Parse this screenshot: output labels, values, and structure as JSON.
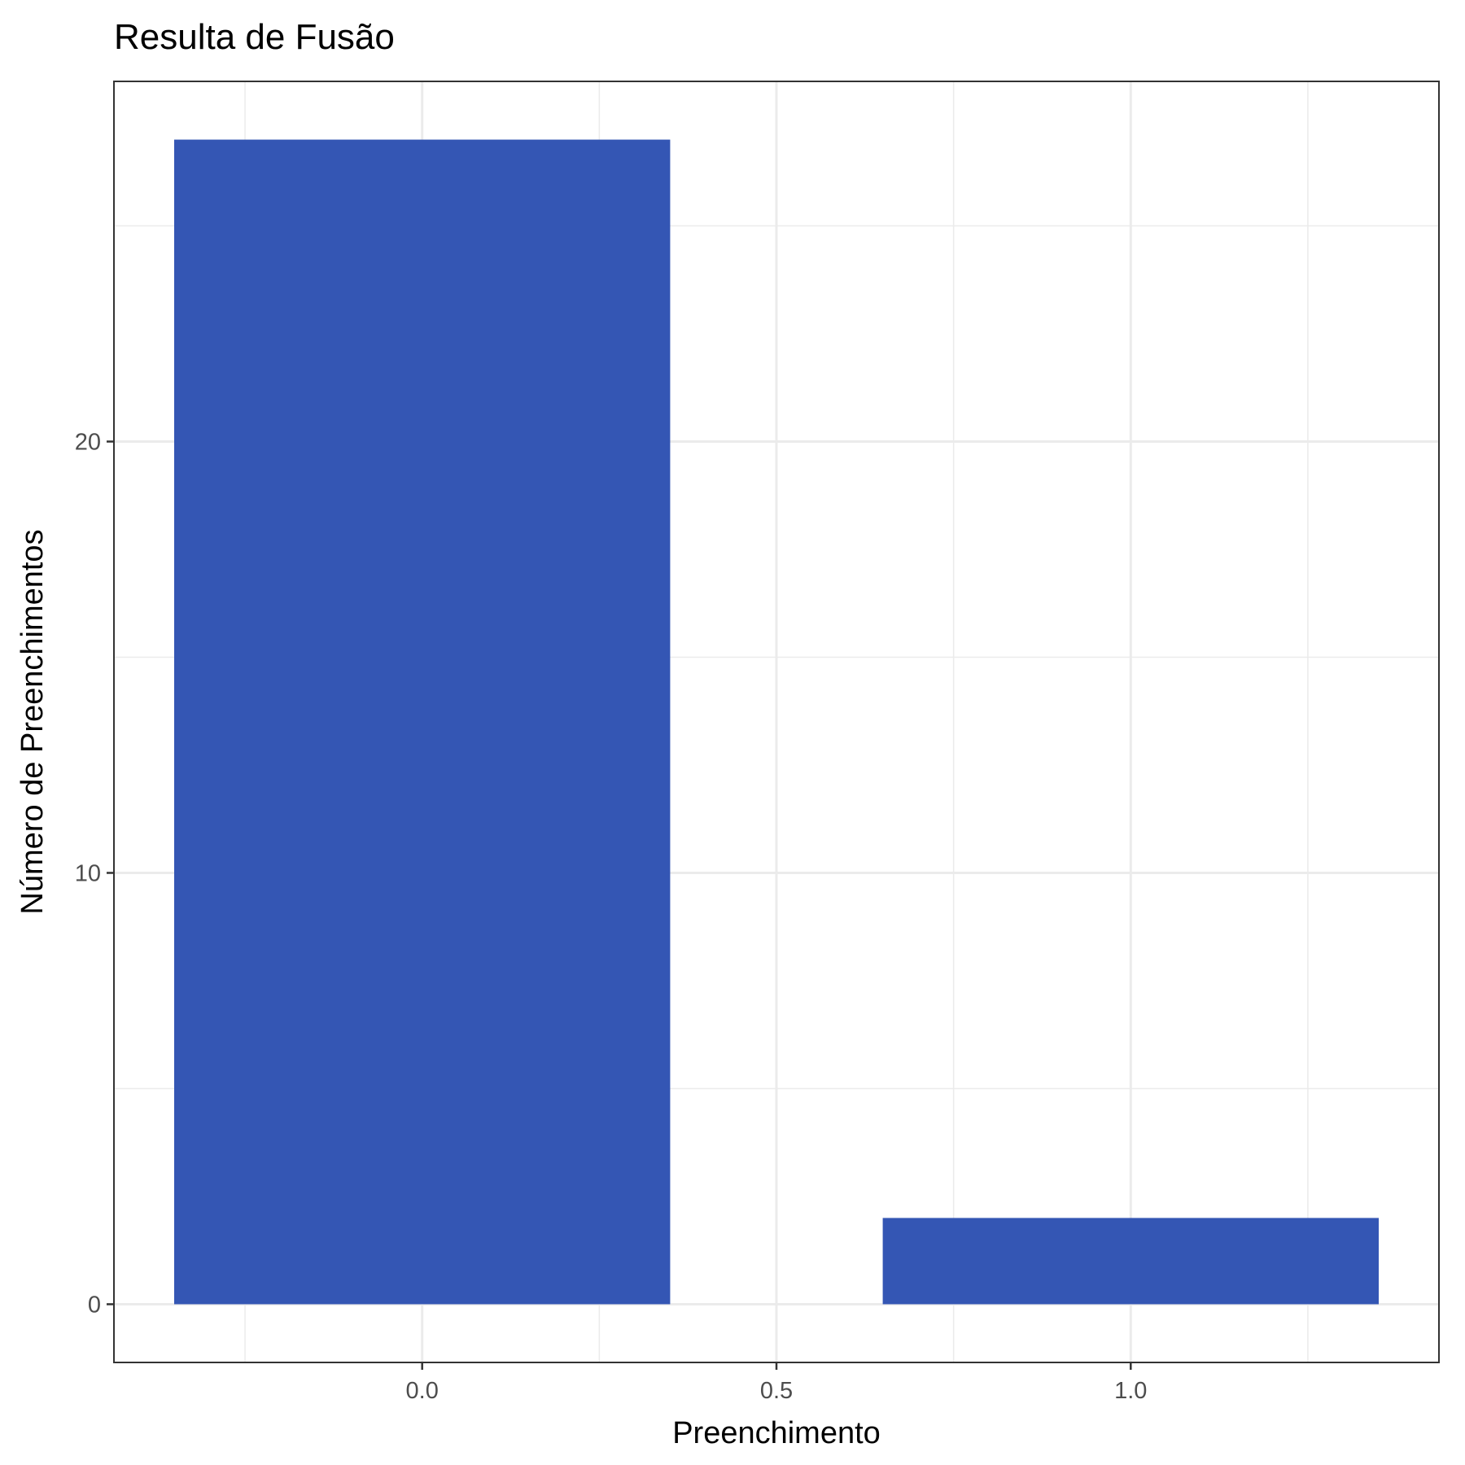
{
  "chart_data": {
    "type": "bar",
    "title": "Resulta de Fusão",
    "xlabel": "Preenchimento",
    "ylabel": "Número de Preenchimentos",
    "x": [
      0,
      1
    ],
    "values": [
      27,
      2
    ],
    "bar_width": 0.7,
    "xlim": [
      -0.435,
      1.435
    ],
    "ylim": [
      -1.35,
      28.35
    ],
    "x_ticks": [
      0.0,
      0.5,
      1.0
    ],
    "x_tick_labels": [
      "0.0",
      "0.5",
      "1.0"
    ],
    "x_minor_ticks": [
      -0.25,
      0.25,
      0.75,
      1.25
    ],
    "y_ticks": [
      0,
      10,
      20
    ],
    "y_tick_labels": [
      "0",
      "10",
      "20"
    ],
    "y_minor_ticks": [
      5,
      15,
      25
    ],
    "grid": true,
    "legend": "none",
    "colors": {
      "bar": "#3456b4",
      "panel_border": "#333333",
      "grid": "#ebebeb"
    }
  }
}
